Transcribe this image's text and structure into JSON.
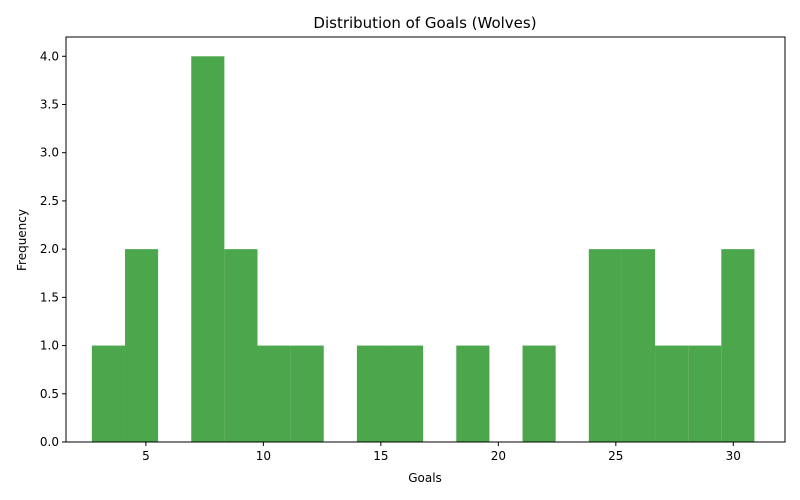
{
  "chart_data": {
    "type": "bar",
    "subtype": "histogram",
    "title": "Distribution of Goals (Wolves)",
    "xlabel": "Goals",
    "ylabel": "Frequency",
    "bar_color": "#4ca64c",
    "grid": false,
    "xlim": [
      1.6,
      32.2
    ],
    "ylim": [
      0,
      4.2
    ],
    "bin_edges": [
      2.7,
      4.11,
      5.52,
      6.93,
      8.34,
      9.75,
      11.16,
      12.57,
      13.98,
      15.39,
      16.8,
      18.21,
      19.62,
      21.03,
      22.44,
      23.85,
      25.26,
      26.67,
      28.08,
      29.49,
      30.9
    ],
    "counts": [
      1,
      2,
      0,
      4,
      2,
      1,
      1,
      0,
      1,
      1,
      0,
      1,
      0,
      1,
      0,
      2,
      2,
      1,
      1,
      2
    ],
    "x_ticks": [
      5,
      10,
      15,
      20,
      25,
      30
    ],
    "y_ticks": [
      0.0,
      0.5,
      1.0,
      1.5,
      2.0,
      2.5,
      3.0,
      3.5,
      4.0
    ],
    "y_tick_labels": [
      "0.0",
      "0.5",
      "1.0",
      "1.5",
      "2.0",
      "2.5",
      "3.0",
      "3.5",
      "4.0"
    ]
  }
}
